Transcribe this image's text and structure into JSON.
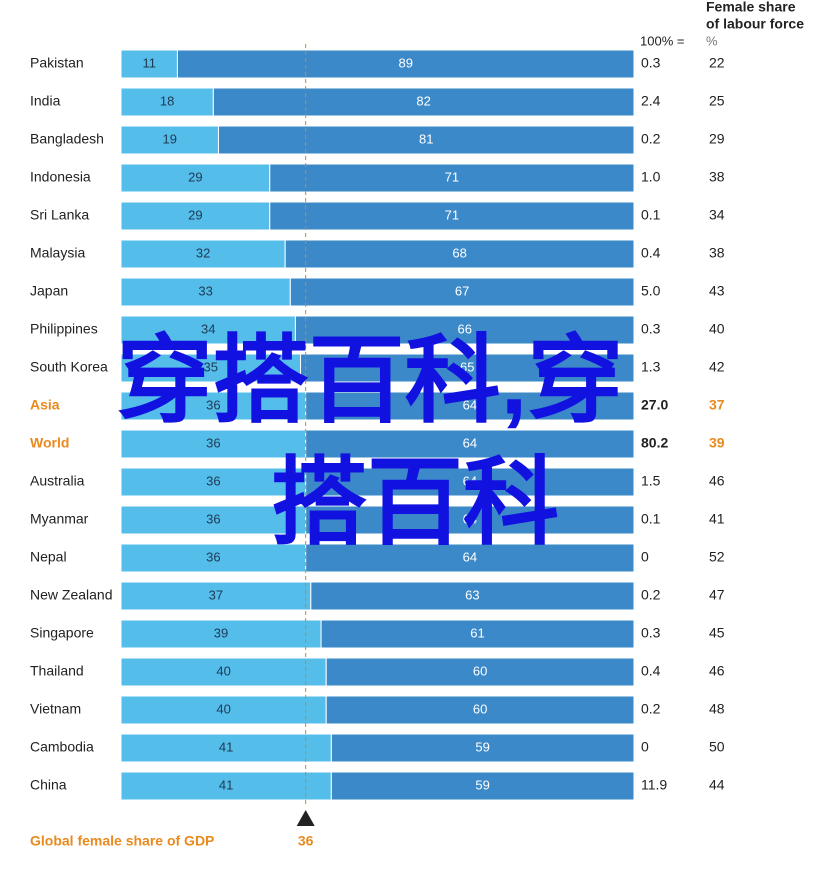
{
  "chart_data": {
    "type": "bar",
    "orientation": "horizontal",
    "stacked": true,
    "categories": [
      "Pakistan",
      "India",
      "Bangladesh",
      "Indonesia",
      "Sri Lanka",
      "Malaysia",
      "Japan",
      "Philippines",
      "South Korea",
      "Asia",
      "World",
      "Australia",
      "Myanmar",
      "Nepal",
      "New Zealand",
      "Singapore",
      "Thailand",
      "Vietnam",
      "Cambodia",
      "China"
    ],
    "series": [
      {
        "color": "#55bdea",
        "values": [
          11,
          18,
          19,
          29,
          29,
          32,
          33,
          34,
          35,
          36,
          36,
          36,
          36,
          36,
          37,
          39,
          40,
          40,
          41,
          41
        ]
      },
      {
        "color": "#3c89c9",
        "values": [
          89,
          82,
          81,
          71,
          71,
          68,
          67,
          66,
          65,
          64,
          64,
          64,
          64,
          64,
          63,
          61,
          60,
          60,
          59,
          59
        ]
      }
    ],
    "xlim": [
      0,
      100
    ],
    "highlight": [
      9,
      10
    ],
    "highlight_color": "#e98a1f",
    "columns": [
      {
        "header": "100% =",
        "values": [
          0.3,
          2.4,
          0.2,
          1.0,
          0.1,
          0.4,
          5.0,
          0.3,
          1.3,
          27.0,
          80.2,
          1.5,
          0.1,
          0,
          0.2,
          0.3,
          0.4,
          0.2,
          0,
          11.9
        ],
        "value_labels": [
          "0.3",
          "2.4",
          "0.2",
          "1.0",
          "0.1",
          "0.4",
          "5.0",
          "0.3",
          "1.3",
          "27.0",
          "80.2",
          "1.5",
          "0.1",
          "0",
          "0.2",
          "0.3",
          "0.4",
          "0.2",
          "0",
          "11.9"
        ]
      },
      {
        "header": [
          "Female share",
          "of labour force"
        ],
        "unit": "%",
        "values": [
          22,
          25,
          29,
          38,
          34,
          38,
          43,
          40,
          42,
          37,
          39,
          46,
          41,
          52,
          47,
          45,
          46,
          48,
          50,
          44
        ]
      }
    ],
    "reference": {
      "label": "Global female share of GDP",
      "value": 36
    },
    "watermark": [
      "穿搭百科,穿",
      "搭百科"
    ]
  }
}
